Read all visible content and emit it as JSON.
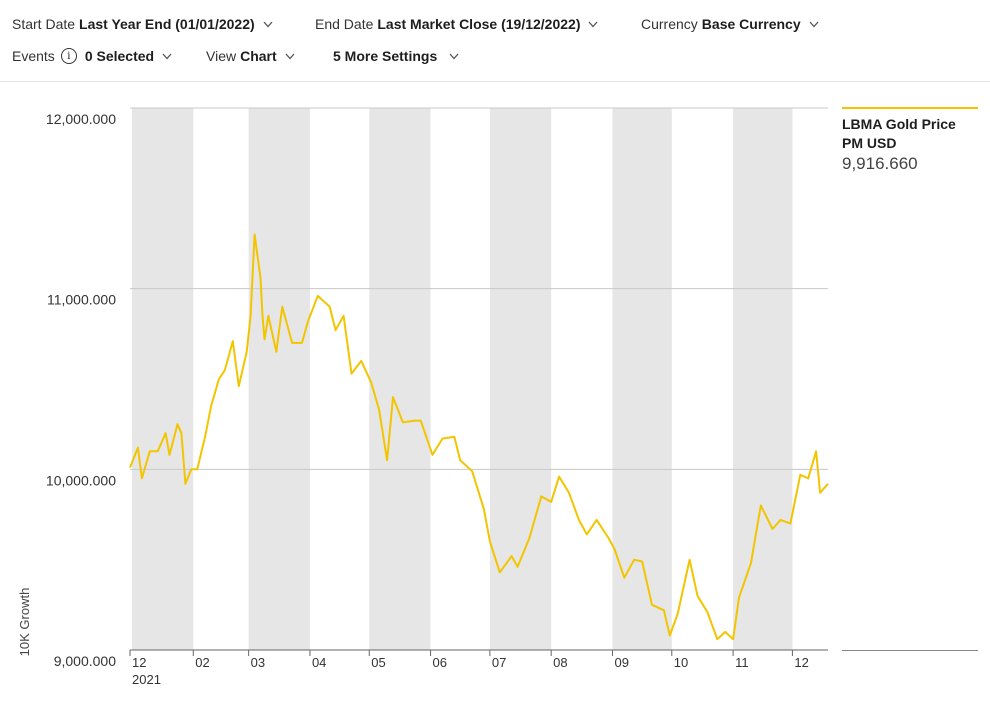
{
  "toolbar": {
    "start_date": {
      "label": "Start Date",
      "value": "Last Year End (01/01/2022)"
    },
    "end_date": {
      "label": "End Date",
      "value": "Last Market Close (19/12/2022)"
    },
    "currency": {
      "label": "Currency",
      "value": "Base Currency"
    },
    "events": {
      "label": "Events",
      "value": "0 Selected"
    },
    "view": {
      "label": "View",
      "value": "Chart"
    },
    "more_settings": {
      "label": "5 More Settings"
    }
  },
  "legend": {
    "name": "LBMA Gold Price PM USD",
    "value": "9,916.660"
  },
  "chart_data": {
    "type": "line",
    "ylabel": "10K Growth",
    "ylim": [
      9000,
      12000
    ],
    "yticks": [
      12000,
      11000,
      10000,
      9000
    ],
    "ytick_labels": [
      "12,000.000",
      "11,000.000",
      "10,000.000",
      "9,000.000"
    ],
    "xticks": [
      "12",
      "02",
      "03",
      "04",
      "05",
      "06",
      "07",
      "08",
      "09",
      "10",
      "11",
      "12"
    ],
    "xtick_sublabel": "2021",
    "shaded_bands": [
      "01",
      "03",
      "05",
      "07",
      "09",
      "11"
    ],
    "colors": {
      "series": "#f2c500",
      "band": "#e6e6e6",
      "grid": "#c8c8c8"
    },
    "series": [
      {
        "name": "LBMA Gold Price PM USD",
        "x": [
          "2021-12-31",
          "2022-01-04",
          "2022-01-06",
          "2022-01-10",
          "2022-01-14",
          "2022-01-18",
          "2022-01-20",
          "2022-01-24",
          "2022-01-26",
          "2022-01-28",
          "2022-01-31",
          "2022-02-03",
          "2022-02-07",
          "2022-02-10",
          "2022-02-14",
          "2022-02-17",
          "2022-02-21",
          "2022-02-24",
          "2022-02-28",
          "2022-03-02",
          "2022-03-04",
          "2022-03-07",
          "2022-03-08",
          "2022-03-09",
          "2022-03-11",
          "2022-03-15",
          "2022-03-18",
          "2022-03-23",
          "2022-03-28",
          "2022-03-31",
          "2022-04-05",
          "2022-04-11",
          "2022-04-14",
          "2022-04-18",
          "2022-04-22",
          "2022-04-27",
          "2022-05-02",
          "2022-05-06",
          "2022-05-10",
          "2022-05-13",
          "2022-05-18",
          "2022-05-24",
          "2022-05-27",
          "2022-06-02",
          "2022-06-07",
          "2022-06-13",
          "2022-06-16",
          "2022-06-22",
          "2022-06-28",
          "2022-07-01",
          "2022-07-06",
          "2022-07-12",
          "2022-07-15",
          "2022-07-21",
          "2022-07-27",
          "2022-08-01",
          "2022-08-05",
          "2022-08-10",
          "2022-08-15",
          "2022-08-19",
          "2022-08-24",
          "2022-08-30",
          "2022-09-02",
          "2022-09-07",
          "2022-09-12",
          "2022-09-16",
          "2022-09-21",
          "2022-09-27",
          "2022-09-30",
          "2022-10-04",
          "2022-10-10",
          "2022-10-14",
          "2022-10-19",
          "2022-10-24",
          "2022-10-28",
          "2022-11-01",
          "2022-11-04",
          "2022-11-10",
          "2022-11-15",
          "2022-11-21",
          "2022-11-25",
          "2022-11-30",
          "2022-12-05",
          "2022-12-09",
          "2022-12-13",
          "2022-12-15",
          "2022-12-19"
        ],
        "y": [
          10010,
          10120,
          9950,
          10100,
          10100,
          10200,
          10080,
          10250,
          10200,
          9920,
          10000,
          10000,
          10180,
          10350,
          10500,
          10550,
          10710,
          10460,
          10650,
          10850,
          11300,
          11060,
          10850,
          10720,
          10850,
          10650,
          10900,
          10700,
          10700,
          10820,
          10960,
          10900,
          10770,
          10850,
          10530,
          10600,
          10480,
          10330,
          10050,
          10400,
          10260,
          10270,
          10270,
          10080,
          10170,
          10180,
          10050,
          9990,
          9780,
          9600,
          9430,
          9520,
          9460,
          9620,
          9850,
          9820,
          9960,
          9870,
          9720,
          9640,
          9720,
          9620,
          9560,
          9400,
          9500,
          9490,
          9250,
          9220,
          9080,
          9200,
          9500,
          9300,
          9210,
          9060,
          9100,
          9060,
          9290,
          9480,
          9800,
          9670,
          9720,
          9700,
          9970,
          9950,
          10100,
          9870,
          9920
        ]
      }
    ]
  }
}
